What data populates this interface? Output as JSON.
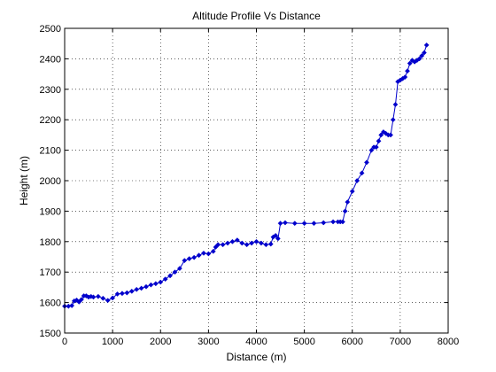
{
  "chart_data": {
    "type": "line",
    "title": "Altitude Profile Vs Distance",
    "xlabel": "Distance (m)",
    "ylabel": "Height (m)",
    "xlim": [
      0,
      8000
    ],
    "ylim": [
      1500,
      2500
    ],
    "xticks": [
      0,
      1000,
      2000,
      3000,
      4000,
      5000,
      6000,
      7000,
      8000
    ],
    "yticks": [
      1500,
      1600,
      1700,
      1800,
      1900,
      2000,
      2100,
      2200,
      2300,
      2400,
      2500
    ],
    "grid": true,
    "marker": "diamond",
    "series": [
      {
        "color": "#0000cc",
        "x": [
          0,
          80,
          150,
          200,
          250,
          300,
          350,
          400,
          450,
          500,
          550,
          600,
          700,
          800,
          900,
          1000,
          1100,
          1200,
          1300,
          1400,
          1500,
          1600,
          1700,
          1800,
          1900,
          2000,
          2100,
          2200,
          2300,
          2400,
          2500,
          2600,
          2700,
          2800,
          2900,
          3000,
          3100,
          3150,
          3200,
          3300,
          3400,
          3500,
          3600,
          3700,
          3800,
          3900,
          4000,
          4100,
          4200,
          4300,
          4350,
          4400,
          4450,
          4500,
          4600,
          4800,
          5000,
          5200,
          5400,
          5600,
          5700,
          5750,
          5800,
          5850,
          5900,
          6000,
          6100,
          6200,
          6300,
          6400,
          6450,
          6500,
          6550,
          6600,
          6650,
          6700,
          6750,
          6800,
          6850,
          6900,
          6950,
          7000,
          7050,
          7100,
          7150,
          7200,
          7250,
          7300,
          7350,
          7400,
          7450,
          7500,
          7550
        ],
        "y": [
          1588,
          1588,
          1590,
          1605,
          1608,
          1602,
          1610,
          1622,
          1622,
          1618,
          1620,
          1618,
          1620,
          1614,
          1607,
          1615,
          1628,
          1630,
          1632,
          1637,
          1643,
          1647,
          1652,
          1658,
          1662,
          1667,
          1677,
          1688,
          1700,
          1712,
          1738,
          1744,
          1748,
          1755,
          1762,
          1760,
          1768,
          1782,
          1790,
          1790,
          1795,
          1800,
          1805,
          1795,
          1790,
          1795,
          1800,
          1795,
          1790,
          1792,
          1815,
          1820,
          1810,
          1860,
          1862,
          1860,
          1860,
          1860,
          1862,
          1865,
          1865,
          1865,
          1865,
          1900,
          1930,
          1965,
          2000,
          2025,
          2060,
          2100,
          2110,
          2110,
          2130,
          2150,
          2160,
          2155,
          2150,
          2150,
          2200,
          2250,
          2325,
          2330,
          2335,
          2340,
          2360,
          2385,
          2395,
          2390,
          2395,
          2400,
          2410,
          2420,
          2445
        ]
      }
    ]
  }
}
